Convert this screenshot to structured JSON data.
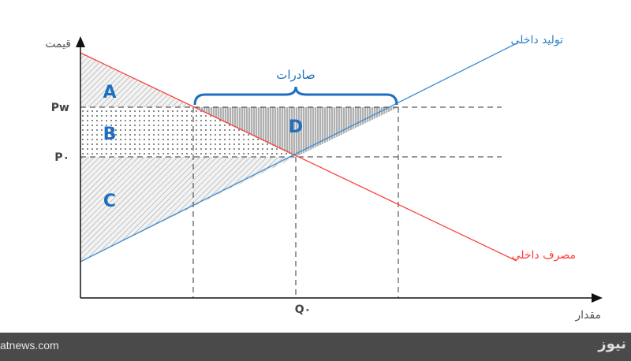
{
  "diagram": {
    "y_axis_label": "قیمت",
    "x_axis_label": "مقدار",
    "supply_label": "تولید داخلی",
    "demand_label": "مصرف داخلی",
    "exports_label": "صادرات",
    "price_world": "Pw",
    "price_zero": "P۰",
    "quantity_zero": "Q۰",
    "regions": {
      "a": "A",
      "b": "B",
      "c": "C",
      "d": "D"
    },
    "colors": {
      "supply": "#3a8fd6",
      "demand": "#ff3b3b",
      "region_label": "#1f6fc0",
      "brace": "#1f6fc0"
    }
  },
  "footer": {
    "site": "atnews.com",
    "logo": "نیوز"
  }
}
